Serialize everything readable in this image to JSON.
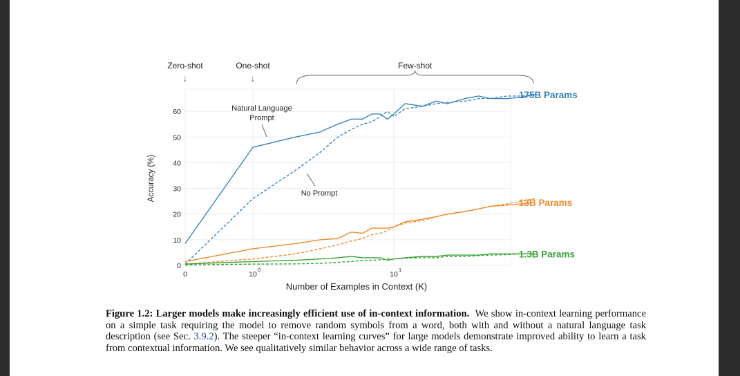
{
  "figure": {
    "chart_data": {
      "type": "line",
      "xlabel": "Number of Examples in Context (K)",
      "ylabel": "Accuracy (%)",
      "x_scale": "symlog",
      "xlim": [
        0,
        100
      ],
      "ylim": [
        0,
        70
      ],
      "x_ticks": [
        {
          "value": 0,
          "label": "0",
          "sup": ""
        },
        {
          "value": 1,
          "label": "10",
          "sup": "0"
        },
        {
          "value": 10,
          "label": "10",
          "sup": "1"
        }
      ],
      "y_ticks": [
        0,
        10,
        20,
        30,
        40,
        50,
        60
      ],
      "top_labels": [
        {
          "text": "Zero-shot",
          "arrow": "↓",
          "x": 0
        },
        {
          "text": "One-shot",
          "arrow": "↓",
          "x": 1
        },
        {
          "text": "Few-shot",
          "brace_from": 2,
          "brace_to": 100
        }
      ],
      "annotations": [
        {
          "text": [
            "Natural Language",
            "Prompt"
          ],
          "target": [
            1.6,
            50
          ]
        },
        {
          "text": [
            "No Prompt"
          ],
          "target": [
            2.6,
            39
          ]
        }
      ],
      "x": [
        0,
        1,
        2,
        3,
        4,
        5,
        6,
        7,
        8,
        9,
        10,
        12,
        16,
        20,
        24,
        32,
        40,
        48,
        64,
        80,
        100
      ],
      "series": [
        {
          "name": "175B Params",
          "color": "#3a84bd",
          "style": "solid",
          "values": [
            8.5,
            46,
            50,
            52,
            55,
            57,
            57,
            59,
            59,
            57,
            59,
            63,
            62,
            64,
            63,
            65,
            66,
            65,
            65,
            65.5,
            66.5
          ]
        },
        {
          "name": "",
          "color": "#3a84bd",
          "style": "dashed",
          "values": [
            0.5,
            26,
            37,
            44,
            50,
            53,
            55,
            56,
            58,
            60,
            58,
            61,
            62,
            63,
            63.5,
            64,
            65,
            65,
            66,
            66,
            66.5
          ]
        },
        {
          "name": "13B Params",
          "color": "#f28a2b",
          "style": "solid",
          "values": [
            1.5,
            6.5,
            8.5,
            10,
            10.5,
            13,
            12.5,
            14.5,
            14.5,
            14.5,
            15,
            17,
            18,
            19,
            20,
            21,
            22,
            23,
            23.5,
            24,
            24.5
          ]
        },
        {
          "name": "",
          "color": "#f28a2b",
          "style": "dashed",
          "values": [
            0.5,
            2.5,
            4.5,
            6.5,
            8,
            9.5,
            10.5,
            12,
            12.5,
            13.5,
            15,
            16.5,
            17.5,
            19,
            20,
            21,
            22,
            23,
            24,
            25,
            26
          ]
        },
        {
          "name": "1.3B Params",
          "color": "#3aa23a",
          "style": "solid",
          "values": [
            0.5,
            1.5,
            2,
            2.5,
            3,
            3.5,
            3,
            3,
            3,
            2,
            2.5,
            3,
            3.5,
            3.5,
            4,
            4,
            4,
            4.5,
            4.5,
            4.5,
            4.5
          ]
        },
        {
          "name": "",
          "color": "#3aa23a",
          "style": "dashed",
          "values": [
            0.2,
            0.5,
            0.6,
            0.8,
            1.2,
            1.5,
            2,
            2,
            2.2,
            2.5,
            2.5,
            2.8,
            3,
            3,
            3.5,
            3.5,
            3.8,
            4,
            4.2,
            4.5,
            4.5
          ]
        }
      ]
    },
    "caption": {
      "lead": "Figure 1.2: Larger models make increasingly efficient use of in-context information.",
      "body_before_ref": "We show in-context learning performance on a simple task requiring the model to remove random symbols from a word, both with and without a natural language task description (see Sec.",
      "ref": "3.9.2",
      "body_after_ref": "). The steeper “in-context learning curves” for large models demonstrate improved ability to learn a task from contextual information. We see qualitatively similar behavior across a wide range of tasks."
    }
  }
}
